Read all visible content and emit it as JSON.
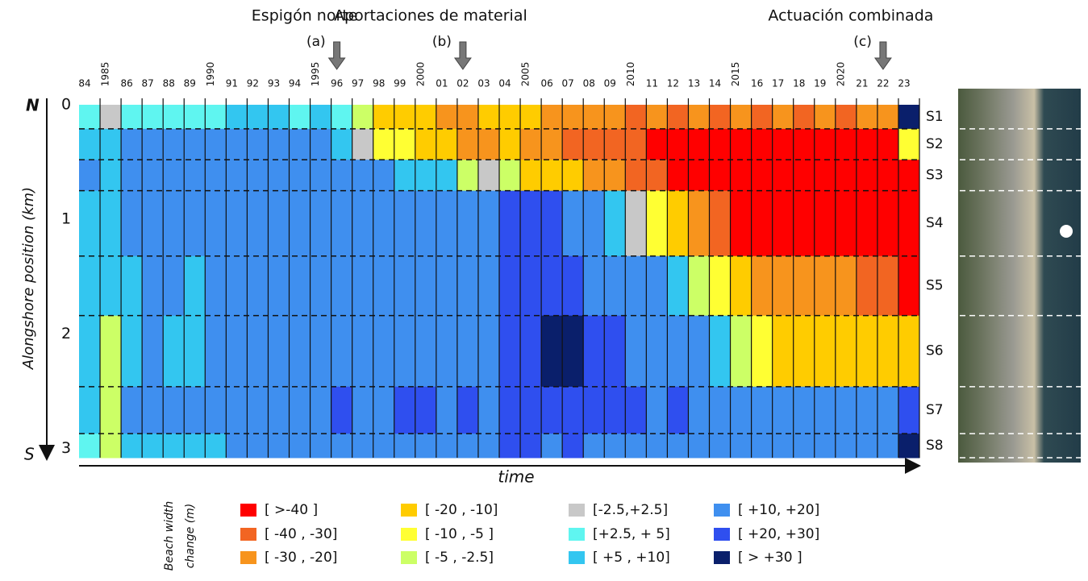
{
  "chart_data": {
    "type": "heatmap",
    "x_label": "time",
    "y_label": "Alongshore position (km)",
    "north_label": "N",
    "south_label": "S",
    "ylim": [
      0,
      3.08
    ],
    "yticks": [
      0,
      1,
      2,
      3
    ],
    "categories": [
      "84",
      "1985",
      "86",
      "87",
      "88",
      "89",
      "1990",
      "91",
      "92",
      "93",
      "94",
      "1995",
      "96",
      "97",
      "98",
      "99",
      "2000",
      "01",
      "02",
      "03",
      "04",
      "2005",
      "06",
      "07",
      "08",
      "09",
      "2010",
      "11",
      "12",
      "13",
      "14",
      "2015",
      "16",
      "17",
      "18",
      "19",
      "2020",
      "21",
      "22",
      "23"
    ],
    "annotations": [
      {
        "text": "Espigón norte",
        "tag": "(a)",
        "category": 12
      },
      {
        "text": "Aportaciones de material",
        "tag": "(b)",
        "category": 18
      },
      {
        "text": "Actuación combinada",
        "tag": "(c)",
        "category": 38
      }
    ],
    "sections": [
      {
        "name": "S1",
        "range": [
          0,
          0.21
        ],
        "values": [
          3,
          2,
          3,
          4,
          4,
          3,
          4,
          5,
          6,
          5,
          4,
          6,
          3,
          -5,
          -12,
          -15,
          -20,
          -25,
          -22,
          -18,
          -12,
          -20,
          -25,
          -28,
          -30,
          -30,
          -32,
          -30,
          -32,
          -30,
          -32,
          -30,
          -32,
          -30,
          -32,
          -30,
          -32,
          -30,
          -28,
          35
        ]
      },
      {
        "name": "S2",
        "range": [
          0.21,
          0.48
        ],
        "values": [
          8,
          6,
          10,
          12,
          12,
          10,
          15,
          14,
          18,
          15,
          15,
          12,
          8,
          0,
          -6,
          -8,
          -12,
          -20,
          -25,
          -22,
          -18,
          -25,
          -28,
          -32,
          -35,
          -35,
          -38,
          -42,
          -42,
          -45,
          -45,
          -45,
          -45,
          -45,
          -45,
          -45,
          -45,
          -45,
          -45,
          -8
        ]
      },
      {
        "name": "S3",
        "range": [
          0.48,
          0.75
        ],
        "values": [
          10,
          8,
          12,
          14,
          14,
          12,
          16,
          15,
          18,
          16,
          18,
          16,
          15,
          12,
          10,
          8,
          8,
          5,
          -3,
          0,
          -5,
          -12,
          -15,
          -20,
          -25,
          -28,
          -32,
          -35,
          -42,
          -45,
          -45,
          -45,
          -45,
          -45,
          -45,
          -45,
          -45,
          -45,
          -45,
          -42
        ]
      },
      {
        "name": "S4",
        "range": [
          0.75,
          1.32
        ],
        "values": [
          8,
          6,
          10,
          12,
          12,
          10,
          14,
          15,
          16,
          15,
          18,
          18,
          16,
          15,
          14,
          14,
          12,
          12,
          14,
          10,
          22,
          22,
          20,
          18,
          12,
          8,
          2,
          -8,
          -15,
          -25,
          -35,
          -42,
          -42,
          -45,
          -45,
          -45,
          -45,
          -45,
          -45,
          -45
        ]
      },
      {
        "name": "S5",
        "range": [
          1.32,
          1.84
        ],
        "values": [
          6,
          5,
          8,
          10,
          10,
          8,
          12,
          14,
          15,
          15,
          16,
          18,
          18,
          16,
          15,
          16,
          16,
          15,
          18,
          14,
          28,
          25,
          22,
          22,
          18,
          16,
          14,
          12,
          8,
          -5,
          -10,
          -18,
          -22,
          -25,
          -28,
          -30,
          -30,
          -32,
          -35,
          -42
        ]
      },
      {
        "name": "S6",
        "range": [
          1.84,
          2.46
        ],
        "values": [
          6,
          -5,
          8,
          10,
          8,
          8,
          10,
          12,
          14,
          15,
          16,
          18,
          18,
          16,
          15,
          16,
          16,
          14,
          16,
          12,
          25,
          22,
          32,
          30,
          22,
          20,
          18,
          16,
          15,
          10,
          5,
          -3,
          -8,
          -12,
          -15,
          -15,
          -15,
          -15,
          -18,
          -15
        ]
      },
      {
        "name": "S7",
        "range": [
          2.46,
          2.87
        ],
        "values": [
          6,
          -5,
          10,
          12,
          10,
          10,
          12,
          14,
          14,
          15,
          18,
          18,
          20,
          18,
          18,
          20,
          20,
          18,
          20,
          15,
          28,
          25,
          25,
          28,
          25,
          22,
          20,
          18,
          20,
          18,
          18,
          18,
          16,
          15,
          15,
          14,
          14,
          15,
          14,
          22
        ]
      },
      {
        "name": "S8",
        "range": [
          2.87,
          3.08
        ],
        "values": [
          4,
          -3,
          6,
          8,
          8,
          6,
          8,
          10,
          10,
          12,
          14,
          14,
          16,
          14,
          14,
          16,
          16,
          14,
          18,
          12,
          20,
          20,
          18,
          20,
          18,
          16,
          16,
          14,
          16,
          14,
          14,
          14,
          12,
          12,
          12,
          10,
          10,
          10,
          14,
          35
        ]
      }
    ],
    "legend_title": [
      "Beach width",
      "change (m)"
    ],
    "legend": [
      {
        "label": "[ >-40 ]",
        "color": "#ff0000",
        "range": [
          null,
          -40
        ]
      },
      {
        "label": "[ -40 , -30]",
        "color": "#f26522",
        "range": [
          -40,
          -30
        ]
      },
      {
        "label": "[ -30 , -20]",
        "color": "#f7941d",
        "range": [
          -30,
          -20
        ]
      },
      {
        "label": "[ -20 , -10]",
        "color": "#ffcc00",
        "range": [
          -20,
          -10
        ]
      },
      {
        "label": "[ -10 ,  -5 ]",
        "color": "#ffff33",
        "range": [
          -10,
          -5
        ]
      },
      {
        "label": "[  -5 , -2.5]",
        "color": "#ccff66",
        "range": [
          -5,
          -2.5
        ]
      },
      {
        "label": "[-2.5,+2.5]",
        "color": "#c8c8c8",
        "range": [
          -2.5,
          2.5
        ]
      },
      {
        "label": "[+2.5, + 5]",
        "color": "#5ff5f0",
        "range": [
          2.5,
          5
        ]
      },
      {
        "label": "[ +5 , +10]",
        "color": "#33c6f0",
        "range": [
          5,
          10
        ]
      },
      {
        "label": "[ +10, +20]",
        "color": "#3f8fef",
        "range": [
          10,
          20
        ]
      },
      {
        "label": "[ +20, +30]",
        "color": "#2f4fef",
        "range": [
          20,
          30
        ]
      },
      {
        "label": "[ > +30 ]",
        "color": "#0a1f6b",
        "range": [
          30,
          null
        ]
      }
    ]
  }
}
